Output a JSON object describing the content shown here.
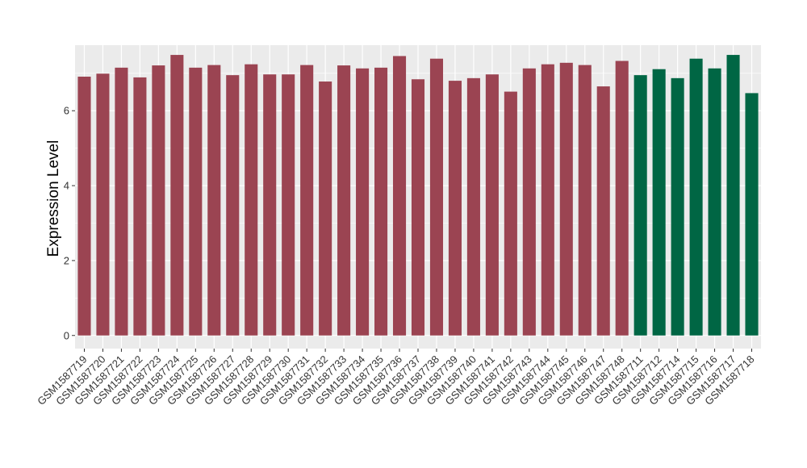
{
  "chart_data": {
    "type": "bar",
    "title": "",
    "xlabel": "",
    "ylabel": "Expression Level",
    "ylim": [
      -0.35,
      7.75
    ],
    "yticks": [
      0,
      2,
      4,
      6
    ],
    "grid": true,
    "legend": "none",
    "colors": {
      "panel_bg": "#ebebeb",
      "grid": "#ffffff",
      "group_a": "#9b4452",
      "group_b": "#006644"
    },
    "categories": [
      "GSM1587719",
      "GSM1587720",
      "GSM1587721",
      "GSM1587722",
      "GSM1587723",
      "GSM1587724",
      "GSM1587725",
      "GSM1587726",
      "GSM1587727",
      "GSM1587728",
      "GSM1587729",
      "GSM1587730",
      "GSM1587731",
      "GSM1587732",
      "GSM1587733",
      "GSM1587734",
      "GSM1587735",
      "GSM1587736",
      "GSM1587737",
      "GSM1587738",
      "GSM1587739",
      "GSM1587740",
      "GSM1587741",
      "GSM1587742",
      "GSM1587743",
      "GSM1587744",
      "GSM1587745",
      "GSM1587746",
      "GSM1587747",
      "GSM1587748",
      "GSM1587711",
      "GSM1587712",
      "GSM1587714",
      "GSM1587715",
      "GSM1587716",
      "GSM1587717",
      "GSM1587718"
    ],
    "values": [
      6.91,
      6.99,
      7.15,
      6.89,
      7.21,
      7.49,
      7.15,
      7.22,
      6.95,
      7.24,
      6.97,
      6.97,
      7.22,
      6.78,
      7.21,
      7.13,
      7.15,
      7.46,
      6.84,
      7.39,
      6.8,
      6.87,
      6.97,
      6.51,
      7.13,
      7.24,
      7.28,
      7.22,
      6.65,
      7.33,
      6.95,
      7.11,
      6.87,
      7.39,
      7.13,
      7.49,
      6.47
    ],
    "groups": [
      "a",
      "a",
      "a",
      "a",
      "a",
      "a",
      "a",
      "a",
      "a",
      "a",
      "a",
      "a",
      "a",
      "a",
      "a",
      "a",
      "a",
      "a",
      "a",
      "a",
      "a",
      "a",
      "a",
      "a",
      "a",
      "a",
      "a",
      "a",
      "a",
      "a",
      "b",
      "b",
      "b",
      "b",
      "b",
      "b",
      "b"
    ]
  }
}
